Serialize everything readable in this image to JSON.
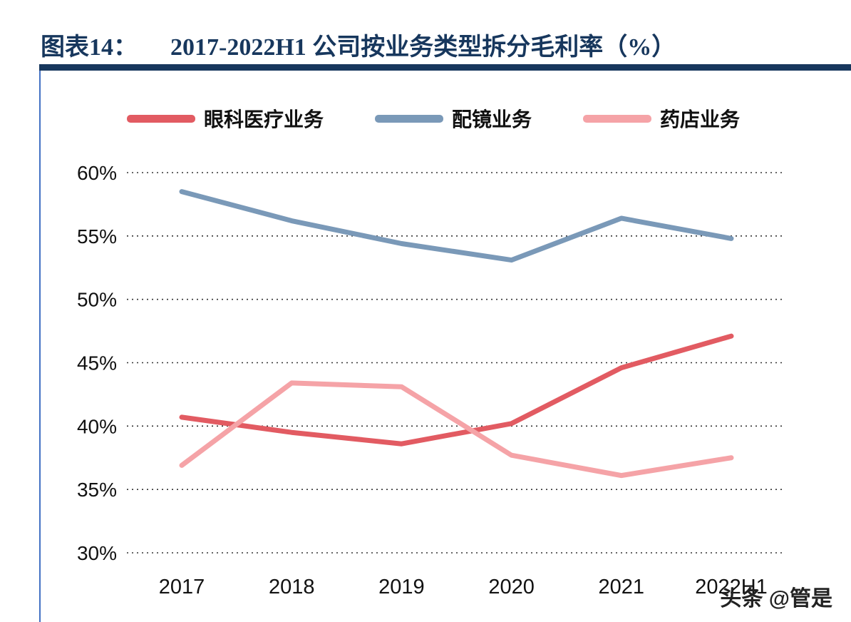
{
  "header": {
    "label": "图表14：",
    "title": "2017-2022H1 公司按业务类型拆分毛利率（%）"
  },
  "chart_data": {
    "type": "line",
    "categories": [
      "2017",
      "2018",
      "2019",
      "2020",
      "2021",
      "2022H1"
    ],
    "series": [
      {
        "name": "眼科医疗业务",
        "color": "#E25B62",
        "values": [
          40.7,
          39.5,
          38.6,
          40.2,
          44.6,
          47.1
        ]
      },
      {
        "name": "配镜业务",
        "color": "#7A99B8",
        "values": [
          58.5,
          56.2,
          54.4,
          53.1,
          56.4,
          54.8
        ]
      },
      {
        "name": "药店业务",
        "color": "#F5A3A7",
        "values": [
          36.9,
          43.4,
          43.1,
          37.7,
          36.1,
          37.5
        ]
      }
    ],
    "ylim": [
      30,
      60
    ],
    "yticks": [
      30,
      35,
      40,
      45,
      50,
      55,
      60
    ],
    "ytick_format": "percent",
    "grid": "dotted-horizontal",
    "legend_position": "top"
  },
  "watermark": "头条 @管是",
  "colors": {
    "title": "#17375D",
    "divider": "#17375D",
    "accent_line": "#4472C4",
    "axis_text": "#111111",
    "gridline": "#333333"
  }
}
